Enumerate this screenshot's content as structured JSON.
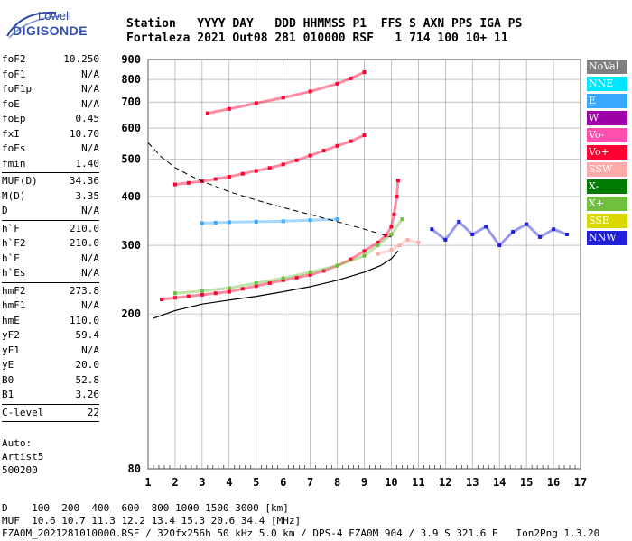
{
  "logo": {
    "line1": "Lowell",
    "line2": "DIGISONDE"
  },
  "header": {
    "row1": "Station   YYYY DAY   DDD HHMMSS P1  FFS S AXN PPS IGA PS",
    "row2": "Fortaleza 2021 Out08 281 010000 RSF   1 714 100 10+ 11"
  },
  "params": [
    {
      "label": "foF2",
      "value": "10.250"
    },
    {
      "label": "foF1",
      "value": "N/A"
    },
    {
      "label": "foF1p",
      "value": "N/A"
    },
    {
      "label": "foE",
      "value": "N/A"
    },
    {
      "label": "foEp",
      "value": "0.45"
    },
    {
      "label": "fxI",
      "value": "10.70"
    },
    {
      "label": "foEs",
      "value": "N/A"
    },
    {
      "label": "fmin",
      "value": "1.40"
    },
    {
      "sep": true
    },
    {
      "label": "MUF(D)",
      "value": "34.36"
    },
    {
      "label": "M(D)",
      "value": "3.35"
    },
    {
      "label": "D",
      "value": "N/A"
    },
    {
      "sep": true
    },
    {
      "label": "h`F",
      "value": "210.0"
    },
    {
      "label": "h`F2",
      "value": "210.0"
    },
    {
      "label": "h`E",
      "value": "N/A"
    },
    {
      "label": "h`Es",
      "value": "N/A"
    },
    {
      "sep": true
    },
    {
      "label": "hmF2",
      "value": "273.8"
    },
    {
      "label": "hmF1",
      "value": "N/A"
    },
    {
      "label": "hmE",
      "value": "110.0"
    },
    {
      "label": "yF2",
      "value": "59.4"
    },
    {
      "label": "yF1",
      "value": "N/A"
    },
    {
      "label": "yE",
      "value": "20.0"
    },
    {
      "label": "B0",
      "value": "52.8"
    },
    {
      "label": "B1",
      "value": "3.26"
    },
    {
      "sep": true
    },
    {
      "label": "C-level",
      "value": "22"
    },
    {
      "sep": true
    }
  ],
  "auto": {
    "line1": "Auto:",
    "line2": "Artist5",
    "line3": "500200"
  },
  "legend": [
    {
      "label": "NoVal",
      "color": "#808080",
      "text_color": "#ffffff"
    },
    {
      "label": "NNE",
      "color": "#00e6ff",
      "text_color": "#ffffff"
    },
    {
      "label": "E",
      "color": "#3aa8ff",
      "text_color": "#ffffff"
    },
    {
      "label": "W",
      "color": "#a000a8",
      "text_color": "#ffffff"
    },
    {
      "label": "Vo-",
      "color": "#ff50b0",
      "text_color": "#ffffff"
    },
    {
      "label": "Vo+",
      "color": "#ff0030",
      "text_color": "#ffffff"
    },
    {
      "label": "SSW",
      "color": "#ffaaaa",
      "text_color": "#ffffff"
    },
    {
      "label": "X-",
      "color": "#007a00",
      "text_color": "#ffffff"
    },
    {
      "label": "X+",
      "color": "#70c040",
      "text_color": "#ffffff"
    },
    {
      "label": "SSE",
      "color": "#d8d800",
      "text_color": "#ffffff"
    },
    {
      "label": "NNW",
      "color": "#2020d8",
      "text_color": "#ffffff"
    }
  ],
  "footer": {
    "row1": "D    100  200  400  600  800 1000 1500 3000 [km]",
    "row2": "MUF  10.6 10.7 11.3 12.2 13.4 15.3 20.6 34.4 [MHz]",
    "row3": "FZA0M_2021281010000.RSF / 320fx256h 50 kHz 5.0 km / DPS-4 FZA0M 904 / 3.9 S 321.6 E   Ion2Png 1.3.20"
  },
  "chart_data": {
    "type": "scatter",
    "xlim": [
      1,
      17
    ],
    "ylim": [
      80,
      900
    ],
    "y_scale": "log",
    "x_ticks": [
      1,
      2,
      3,
      4,
      5,
      6,
      7,
      8,
      9,
      10,
      11,
      12,
      13,
      14,
      15,
      16,
      17
    ],
    "y_ticks": [
      80,
      200,
      300,
      400,
      500,
      600,
      700,
      800,
      900
    ],
    "grid": true,
    "series": [
      {
        "name": "Vo+",
        "color": "#ff0030",
        "x": [
          1.5,
          2,
          2.5,
          3,
          3.5,
          4,
          4.5,
          5,
          5.5,
          6,
          6.5,
          7,
          7.5,
          8,
          8.5,
          9,
          9.5,
          9.8,
          10,
          10.1,
          10.2,
          10.25
        ],
        "y": [
          218,
          220,
          222,
          224,
          226,
          228,
          232,
          236,
          240,
          244,
          248,
          252,
          258,
          266,
          276,
          290,
          305,
          318,
          335,
          360,
          400,
          440
        ]
      },
      {
        "name": "2F",
        "color": "#ff0030",
        "x": [
          2,
          2.5,
          3,
          3.5,
          4,
          4.5,
          5,
          5.5,
          6,
          6.5,
          7,
          7.5,
          8,
          8.5,
          9
        ],
        "y": [
          430,
          434,
          438,
          444,
          450,
          458,
          466,
          474,
          484,
          496,
          510,
          525,
          540,
          555,
          575
        ]
      },
      {
        "name": "3F",
        "color": "#ff0030",
        "x": [
          3.2,
          4,
          5,
          6,
          7,
          8,
          8.5,
          9
        ],
        "y": [
          655,
          672,
          695,
          718,
          745,
          780,
          805,
          835
        ]
      },
      {
        "name": "X+",
        "color": "#70c040",
        "x": [
          2,
          3,
          4,
          5,
          6,
          7,
          8,
          9,
          9.5,
          10,
          10.4
        ],
        "y": [
          226,
          229,
          233,
          240,
          247,
          256,
          266,
          282,
          300,
          320,
          350
        ]
      },
      {
        "name": "E",
        "color": "#3aa8ff",
        "x": [
          3,
          3.5,
          4,
          5,
          6,
          7,
          8
        ],
        "y": [
          342,
          343,
          344,
          345,
          346,
          348,
          350
        ]
      },
      {
        "name": "NNW",
        "color": "#2020d8",
        "x": [
          11.5,
          12,
          12.5,
          13,
          13.5,
          14,
          14.5,
          15,
          15.5,
          16,
          16.5
        ],
        "y": [
          330,
          310,
          345,
          320,
          335,
          300,
          325,
          340,
          315,
          330,
          320
        ]
      },
      {
        "name": "SSW",
        "color": "#ffaaaa",
        "x": [
          9.5,
          10,
          10.3,
          10.6,
          11
        ],
        "y": [
          285,
          292,
          300,
          310,
          305
        ]
      }
    ]
  }
}
